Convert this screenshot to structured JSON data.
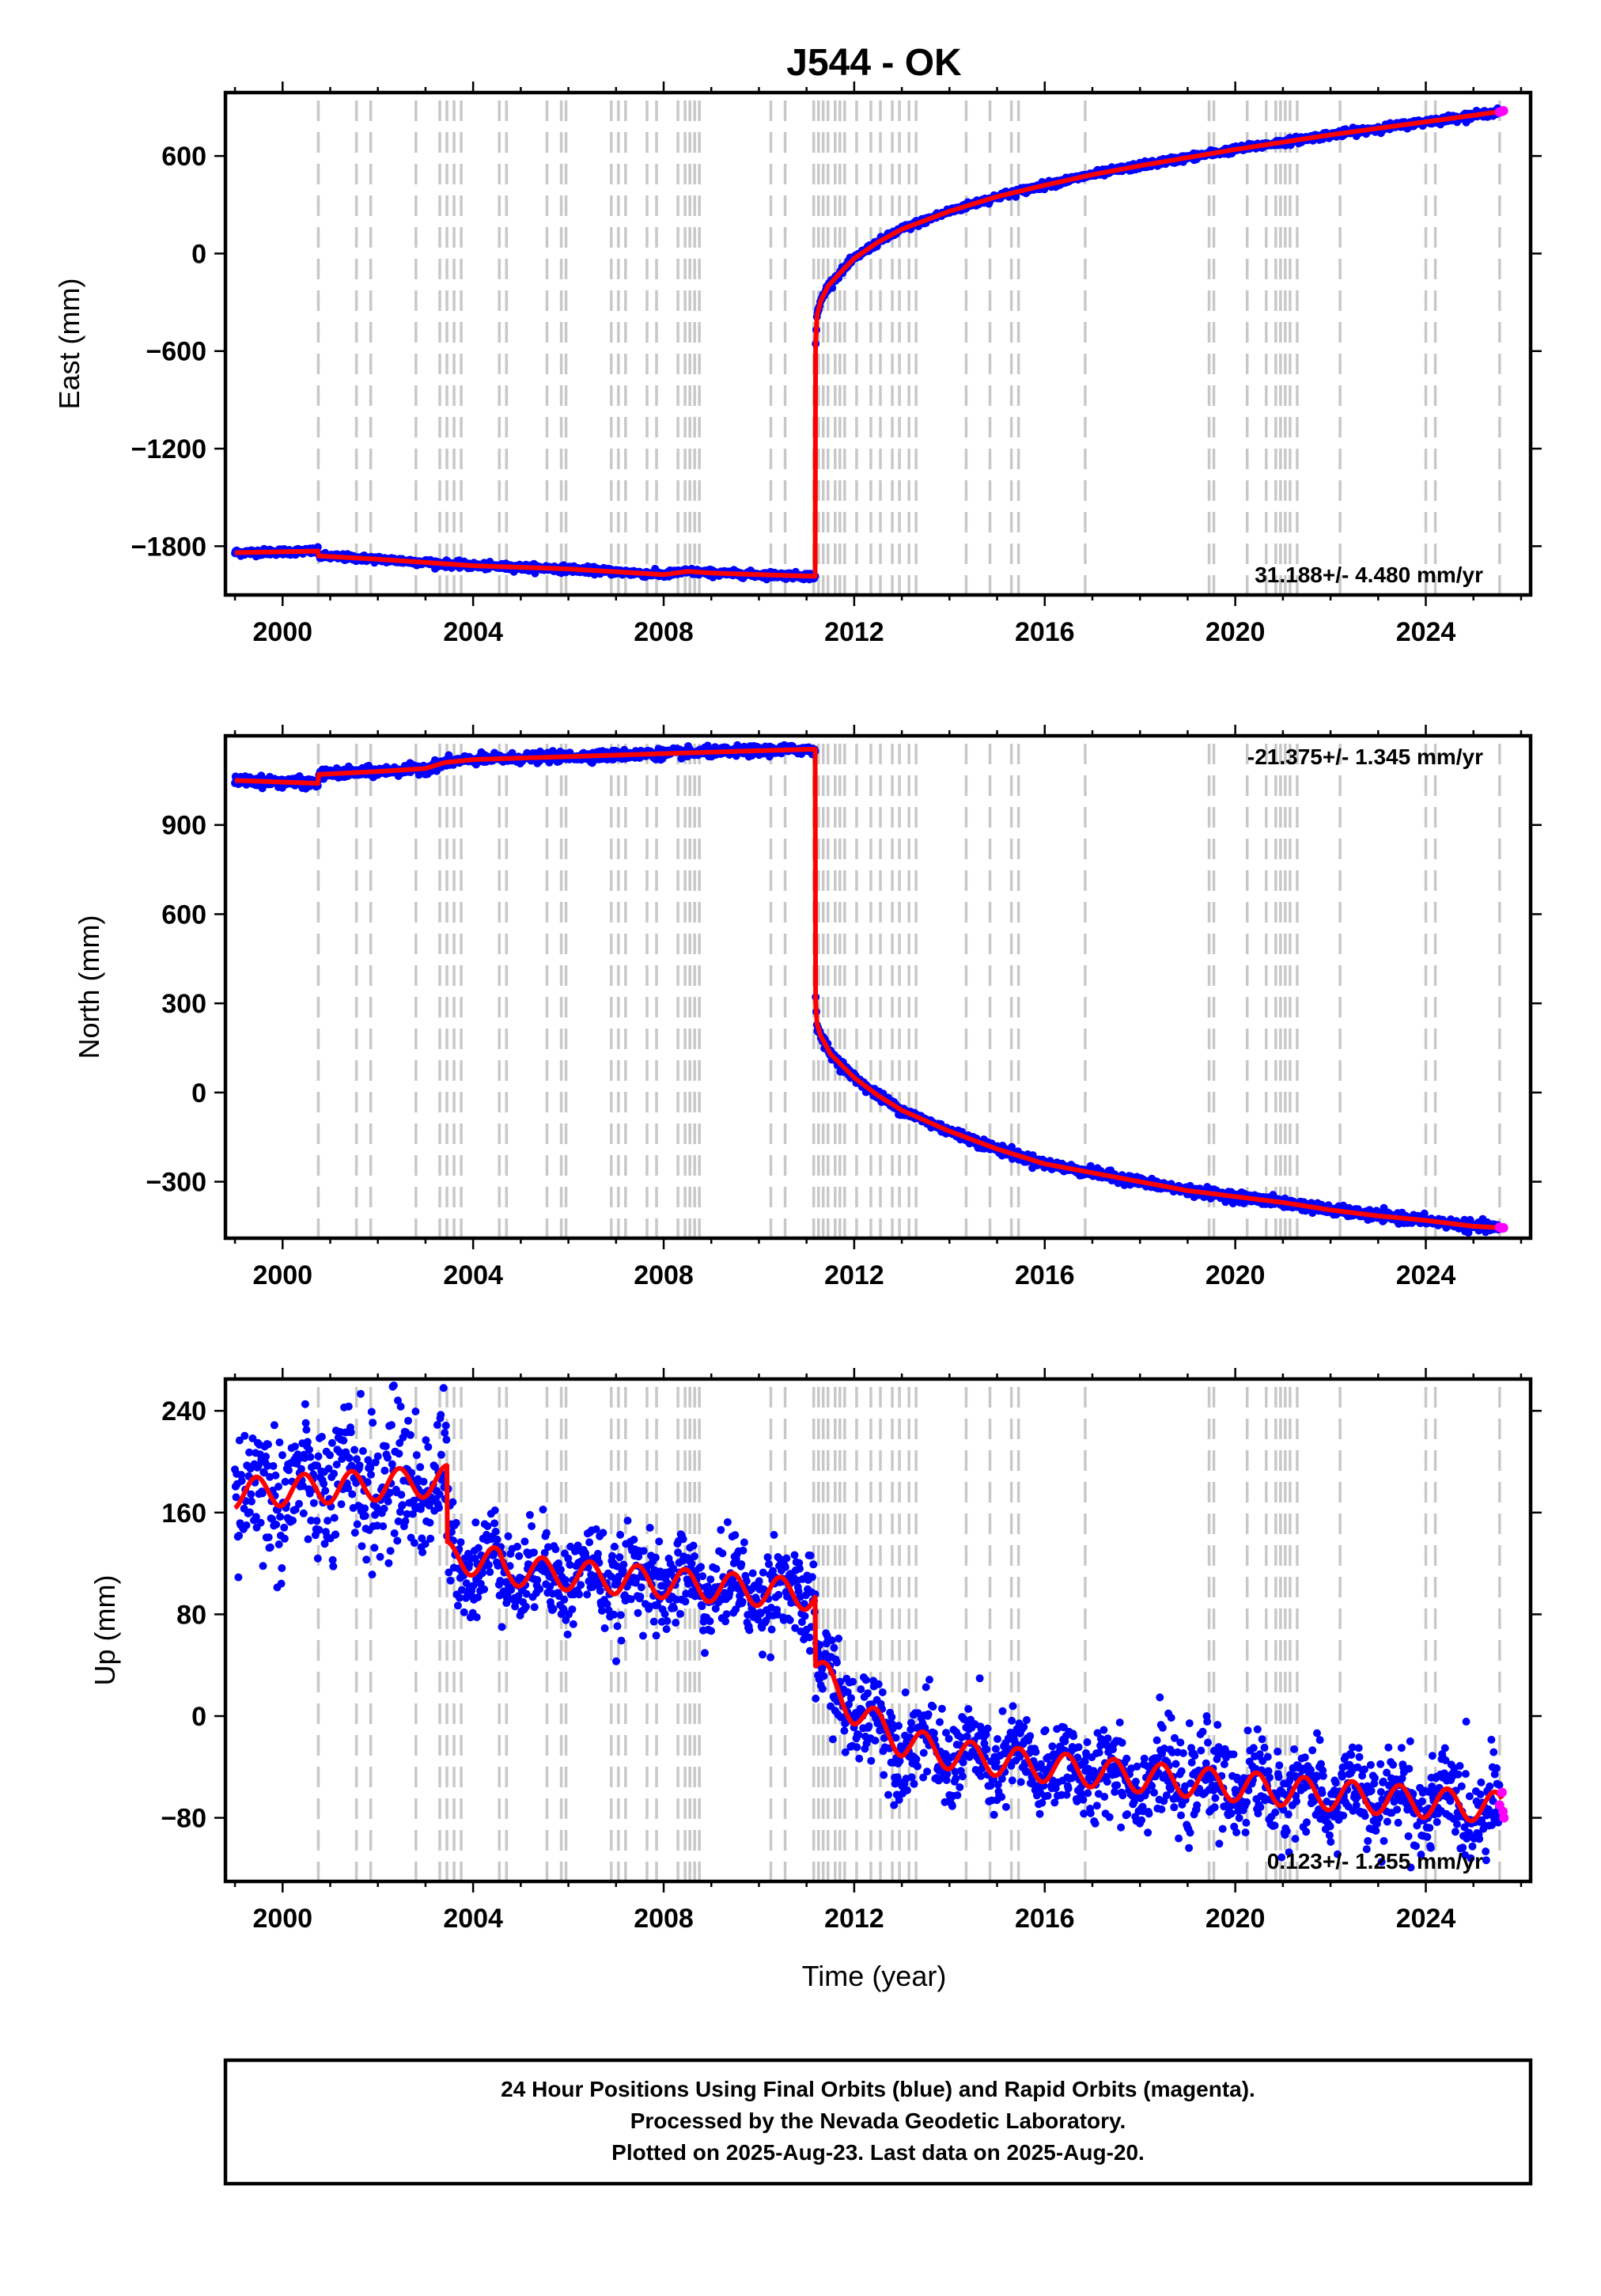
{
  "title": "J544 - OK",
  "xlabel": "Time (year)",
  "x_ticks": [
    2000,
    2004,
    2008,
    2012,
    2016,
    2020,
    2024
  ],
  "event_years": [
    2000.75,
    2001.55,
    2001.85,
    2002.8,
    2003.3,
    2003.45,
    2003.6,
    2003.75,
    2004.55,
    2004.7,
    2005.55,
    2005.85,
    2005.95,
    2006.9,
    2007.05,
    2007.2,
    2007.65,
    2007.85,
    2008.3,
    2008.45,
    2008.55,
    2008.65,
    2008.75,
    2010.25,
    2010.55,
    2011.15,
    2011.25,
    2011.35,
    2011.45,
    2011.6,
    2011.7,
    2011.8,
    2012.05,
    2012.35,
    2012.55,
    2012.8,
    2012.95,
    2013.15,
    2013.3,
    2014.35,
    2014.85,
    2015.3,
    2015.45,
    2016.85,
    2019.45,
    2019.55,
    2020.25,
    2020.65,
    2020.85,
    2020.95,
    2021.05,
    2021.15,
    2021.3,
    2022.2,
    2024.0,
    2024.2,
    2025.55
  ],
  "series_colors": {
    "final_orbits": "#0000ff",
    "rapid_orbits": "#ff00ff",
    "model": "#ff0000"
  },
  "chart_data": [
    {
      "type": "scatter",
      "ylabel": "East (mm)",
      "y_ticks": [
        -1800,
        -1200,
        -600,
        0,
        600
      ],
      "ylim": [
        -2100,
        990
      ],
      "xlim": [
        1998.8,
        2026.2
      ],
      "rate_label": "31.188+/- 4.480 mm/yr",
      "rate_position": "bottom-right",
      "model_x": [
        1999.0,
        2000.74,
        2000.76,
        2002.0,
        2004.0,
        2006.0,
        2008.0,
        2008.5,
        2009.0,
        2010.0,
        2011.18,
        2011.19,
        2011.22,
        2011.3,
        2011.45,
        2011.7,
        2012.0,
        2012.5,
        2013.0,
        2014.0,
        2015.0,
        2016.0,
        2017.0,
        2018.0,
        2019.0,
        2020.0,
        2021.0,
        2022.0,
        2023.0,
        2024.0,
        2025.0,
        2025.6
      ],
      "model_y": [
        -1840,
        -1830,
        -1860,
        -1880,
        -1920,
        -1940,
        -1975,
        -1955,
        -1965,
        -1975,
        -1985,
        -560,
        -380,
        -290,
        -200,
        -120,
        -30,
        70,
        150,
        260,
        350,
        420,
        485,
        540,
        590,
        640,
        685,
        730,
        770,
        810,
        850,
        875
      ],
      "scatter_spread": 10,
      "rapid_x": [
        2025.55,
        2025.6,
        2025.63
      ],
      "rapid_y": [
        870,
        875,
        878
      ]
    },
    {
      "type": "scatter",
      "ylabel": "North (mm)",
      "y_ticks": [
        -300,
        0,
        300,
        600,
        900
      ],
      "ylim": [
        -490,
        1200
      ],
      "xlim": [
        1998.8,
        2026.2
      ],
      "rate_label": "-21.375+/- 1.345 mm/yr",
      "rate_position": "top-right",
      "model_x": [
        1999.0,
        2000.74,
        2000.76,
        2002.0,
        2003.0,
        2003.4,
        2004.0,
        2006.0,
        2008.0,
        2010.0,
        2011.18,
        2011.19,
        2011.22,
        2011.3,
        2011.5,
        2012.0,
        2012.5,
        2013.0,
        2014.0,
        2015.0,
        2016.0,
        2017.0,
        2018.0,
        2019.0,
        2020.0,
        2021.0,
        2022.0,
        2023.0,
        2024.0,
        2025.0,
        2025.6
      ],
      "model_y": [
        1050,
        1040,
        1070,
        1080,
        1090,
        1110,
        1120,
        1130,
        1140,
        1150,
        1155,
        310,
        230,
        190,
        130,
        50,
        -10,
        -60,
        -130,
        -190,
        -240,
        -270,
        -300,
        -330,
        -350,
        -370,
        -395,
        -415,
        -430,
        -450,
        -455
      ],
      "scatter_spread": 8,
      "rapid_x": [
        2025.55,
        2025.6,
        2025.63
      ],
      "rapid_y": [
        -453,
        -456,
        -455
      ]
    },
    {
      "type": "scatter",
      "ylabel": "Up (mm)",
      "y_ticks": [
        -80,
        0,
        80,
        160,
        240
      ],
      "ylim": [
        -130,
        265
      ],
      "xlim": [
        1998.8,
        2026.2
      ],
      "rate_label": "0.123+/- 1.255 mm/yr",
      "rate_position": "bottom-right",
      "model_base_x": [
        1999.0,
        2003.45,
        2003.46,
        2004.55,
        2004.65,
        2011.18,
        2011.19,
        2011.3,
        2011.6,
        2012.0,
        2013.0,
        2014.0,
        2016.0,
        2018.0,
        2020.0,
        2022.0,
        2024.0,
        2025.6
      ],
      "model_base_y": [
        175,
        185,
        125,
        120,
        115,
        95,
        40,
        35,
        20,
        5,
        -20,
        -30,
        -40,
        -48,
        -55,
        -62,
        -68,
        -72
      ],
      "seasonal_amplitude": 12,
      "scatter_spread": 22,
      "rapid_x": [
        2025.55,
        2025.6,
        2025.62,
        2025.64
      ],
      "rapid_y": [
        -70,
        -60,
        -75,
        -80
      ]
    }
  ],
  "footer": {
    "line1": "24 Hour Positions Using Final Orbits (blue) and Rapid Orbits (magenta).",
    "line2": "Processed by the Nevada Geodetic Laboratory.",
    "line3": "Plotted on 2025-Aug-23. Last data on 2025-Aug-20."
  }
}
